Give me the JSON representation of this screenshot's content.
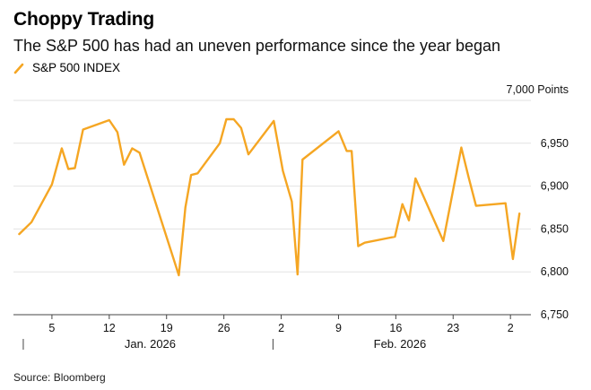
{
  "header": {
    "title": "Choppy Trading",
    "subtitle": "The S&P 500 has had an uneven performance since the year began"
  },
  "legend": {
    "label": "S&P 500 INDEX"
  },
  "footer": {
    "source": "Source: Bloomberg"
  },
  "colors": {
    "line": "#F5A623",
    "grid": "#e2e2e2",
    "axis": "#444444"
  },
  "chart_data": {
    "type": "line",
    "title": "Choppy Trading",
    "subtitle": "The S&P 500 has had an uneven performance since the year began",
    "ylabel": "Points",
    "ylim": [
      6750,
      7000
    ],
    "y_ticks": [
      6750,
      6800,
      6850,
      6900,
      6950,
      7000
    ],
    "y_tick_labels": [
      "6,750",
      "6,800",
      "6,850",
      "6,900",
      "6,950",
      "7,000 Points"
    ],
    "x_ticks": [
      {
        "day": 5,
        "label": "5"
      },
      {
        "day": 12,
        "label": "12"
      },
      {
        "day": 19,
        "label": "19"
      },
      {
        "day": 26,
        "label": "26"
      },
      {
        "day": 33,
        "label": "2"
      },
      {
        "day": 40,
        "label": "9"
      },
      {
        "day": 47,
        "label": "16"
      },
      {
        "day": 54,
        "label": "23"
      },
      {
        "day": 61,
        "label": "2"
      }
    ],
    "month_labels": [
      {
        "day": 17,
        "label": "Jan. 2026"
      },
      {
        "day": 47.5,
        "label": "Feb. 2026"
      }
    ],
    "month_separators": [
      1.5,
      32
    ],
    "x_range": [
      0.3,
      63.5
    ],
    "series": [
      {
        "name": "S&P 500 INDEX",
        "points": [
          [
            1,
            6844
          ],
          [
            2.5,
            6858
          ],
          [
            5,
            6902
          ],
          [
            6.2,
            6944
          ],
          [
            7,
            6920
          ],
          [
            7.8,
            6921
          ],
          [
            8.8,
            6966
          ],
          [
            12,
            6977
          ],
          [
            13,
            6963
          ],
          [
            13.8,
            6925
          ],
          [
            14.8,
            6944
          ],
          [
            15.7,
            6939
          ],
          [
            20.5,
            6796
          ],
          [
            21.3,
            6875
          ],
          [
            22,
            6913
          ],
          [
            22.8,
            6915
          ],
          [
            25.5,
            6950
          ],
          [
            26.3,
            6978
          ],
          [
            27.2,
            6978
          ],
          [
            28.1,
            6968
          ],
          [
            29,
            6937
          ],
          [
            32.1,
            6976
          ],
          [
            33.2,
            6918
          ],
          [
            34.3,
            6882
          ],
          [
            35,
            6797
          ],
          [
            35.6,
            6931
          ],
          [
            40,
            6964
          ],
          [
            41,
            6941
          ],
          [
            41.6,
            6941
          ],
          [
            42.4,
            6830
          ],
          [
            43.2,
            6834
          ],
          [
            46.9,
            6841
          ],
          [
            47.8,
            6879
          ],
          [
            48.6,
            6860
          ],
          [
            49.4,
            6909
          ],
          [
            52.8,
            6836
          ],
          [
            55,
            6945
          ],
          [
            55.9,
            6910
          ],
          [
            56.8,
            6877
          ],
          [
            60.4,
            6880
          ],
          [
            61.3,
            6815
          ],
          [
            62.1,
            6868
          ]
        ]
      }
    ]
  }
}
